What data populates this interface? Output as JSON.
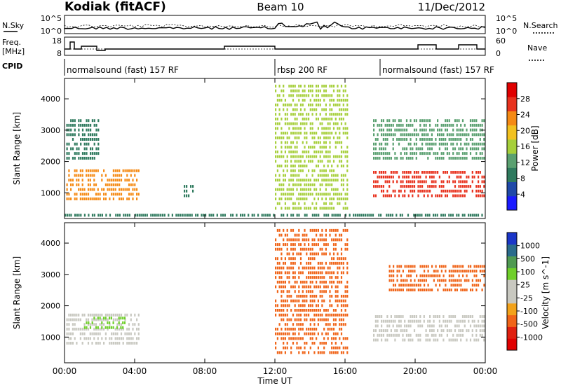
{
  "header": {
    "title": "Kodiak (fitACF)",
    "beam": "Beam 10",
    "date": "11/Dec/2012"
  },
  "status_panels": {
    "nsky_label": "N.Sky",
    "nsearch_label": "N.Search",
    "freq_label_1": "Freq.",
    "freq_label_2": "[MHz]",
    "nave_label": "Nave",
    "cpid_label": "CPID",
    "left_ticks_top": [
      "10^5",
      "10^0"
    ],
    "right_ticks_top": [
      "10^5",
      "10^0"
    ],
    "left_ticks_freq": [
      "18",
      "8"
    ],
    "right_ticks_nave": [
      "60",
      "0"
    ]
  },
  "cpid": [
    {
      "label": "normalsound (fast) 157 RF",
      "start_hour": 0,
      "end_hour": 12.0
    },
    {
      "label": "rbsp 200 RF",
      "start_hour": 12.0,
      "end_hour": 18.0
    },
    {
      "label": "normalsound (fast) 157 RF",
      "start_hour": 18.0,
      "end_hour": 24
    }
  ],
  "chart_data": [
    {
      "type": "heatmap",
      "title": "",
      "quantity": "Power",
      "xlabel": "Time UT",
      "ylabel": "Slant Range [km]",
      "colorbar_label": "Power [dB]",
      "xlim": [
        0,
        24
      ],
      "ylim": [
        180,
        4650
      ],
      "x_ticks": [
        "00:00",
        "04:00",
        "08:00",
        "12:00",
        "16:00",
        "20:00",
        "00:00"
      ],
      "y_ticks": [
        1000,
        2000,
        3000,
        4000
      ],
      "colorbar_ticks": [
        4,
        8,
        12,
        16,
        20,
        24,
        28
      ],
      "colorbar_range": [
        0,
        32
      ],
      "colorbar_colors": [
        "#1a1aff",
        "#1f49a8",
        "#2f7a5e",
        "#5aa070",
        "#a6cf3a",
        "#f2c11f",
        "#f58a14",
        "#e8321e",
        "#e00000"
      ],
      "regions": [
        {
          "t": [
            0.1,
            4.3
          ],
          "r": [
            700,
            1700
          ],
          "level": 24
        },
        {
          "t": [
            0.1,
            2.0
          ],
          "r": [
            2000,
            3300
          ],
          "level": 8
        },
        {
          "t": [
            6.8,
            7.4
          ],
          "r": [
            800,
            1200
          ],
          "level": 8
        },
        {
          "t": [
            12.0,
            16.2
          ],
          "r": [
            400,
            4500
          ],
          "level": 14
        },
        {
          "t": [
            17.6,
            24.0
          ],
          "r": [
            800,
            1700
          ],
          "level": 26
        },
        {
          "t": [
            17.6,
            24.0
          ],
          "r": [
            2000,
            3400
          ],
          "level": 12
        },
        {
          "t": [
            0.0,
            24.0
          ],
          "r": [
            180,
            350
          ],
          "level": 6
        }
      ]
    },
    {
      "type": "heatmap",
      "title": "",
      "quantity": "Velocity",
      "xlabel": "Time UT",
      "ylabel": "Slant Range [km]",
      "colorbar_label": "Velocity [m s^-1]",
      "xlim": [
        0,
        24
      ],
      "ylim": [
        180,
        4650
      ],
      "x_ticks": [
        "00:00",
        "04:00",
        "08:00",
        "12:00",
        "16:00",
        "20:00",
        "00:00"
      ],
      "y_ticks": [
        1000,
        2000,
        3000,
        4000
      ],
      "colorbar_ticks": [
        "1000",
        "500",
        "100",
        "25",
        "-25",
        "-100",
        "-500",
        "-1000"
      ],
      "colorbar_colors": [
        "#1a36c8",
        "#2a6b8c",
        "#4f9a52",
        "#6fcf2a",
        "#c8c8c0",
        "#c8c8c0",
        "#f2a21a",
        "#f06418",
        "#e02010",
        "#e00000"
      ],
      "regions": [
        {
          "t": [
            0.1,
            4.3
          ],
          "r": [
            700,
            1700
          ],
          "level": 0
        },
        {
          "t": [
            1.0,
            3.5
          ],
          "r": [
            1200,
            1700
          ],
          "level": 100
        },
        {
          "t": [
            12.0,
            16.2
          ],
          "r": [
            400,
            4500
          ],
          "level": -200
        },
        {
          "t": [
            17.6,
            24.0
          ],
          "r": [
            800,
            1700
          ],
          "level": 0
        },
        {
          "t": [
            18.5,
            24.0
          ],
          "r": [
            2400,
            3300
          ],
          "level": -100
        }
      ]
    }
  ]
}
